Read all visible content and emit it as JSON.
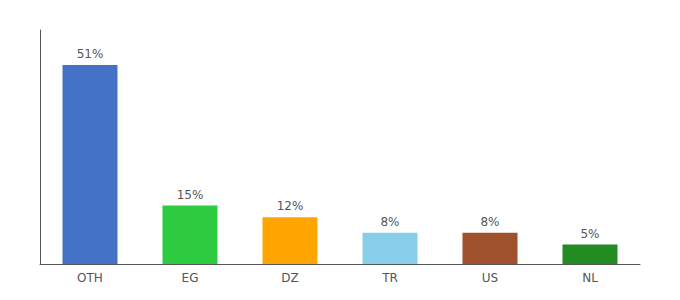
{
  "chart_data": {
    "type": "bar",
    "categories": [
      "OTH",
      "EG",
      "DZ",
      "TR",
      "US",
      "NL"
    ],
    "values": [
      51,
      15,
      12,
      8,
      8,
      5
    ],
    "value_labels": [
      "51%",
      "15%",
      "12%",
      "8%",
      "8%",
      "5%"
    ],
    "colors": [
      "#4472C4",
      "#2ECC40",
      "#FFA500",
      "#87CEEB",
      "#A0522D",
      "#228B22"
    ],
    "ylim": [
      0,
      60
    ],
    "grid": false,
    "tick_labels": "x",
    "data_labels": true
  }
}
